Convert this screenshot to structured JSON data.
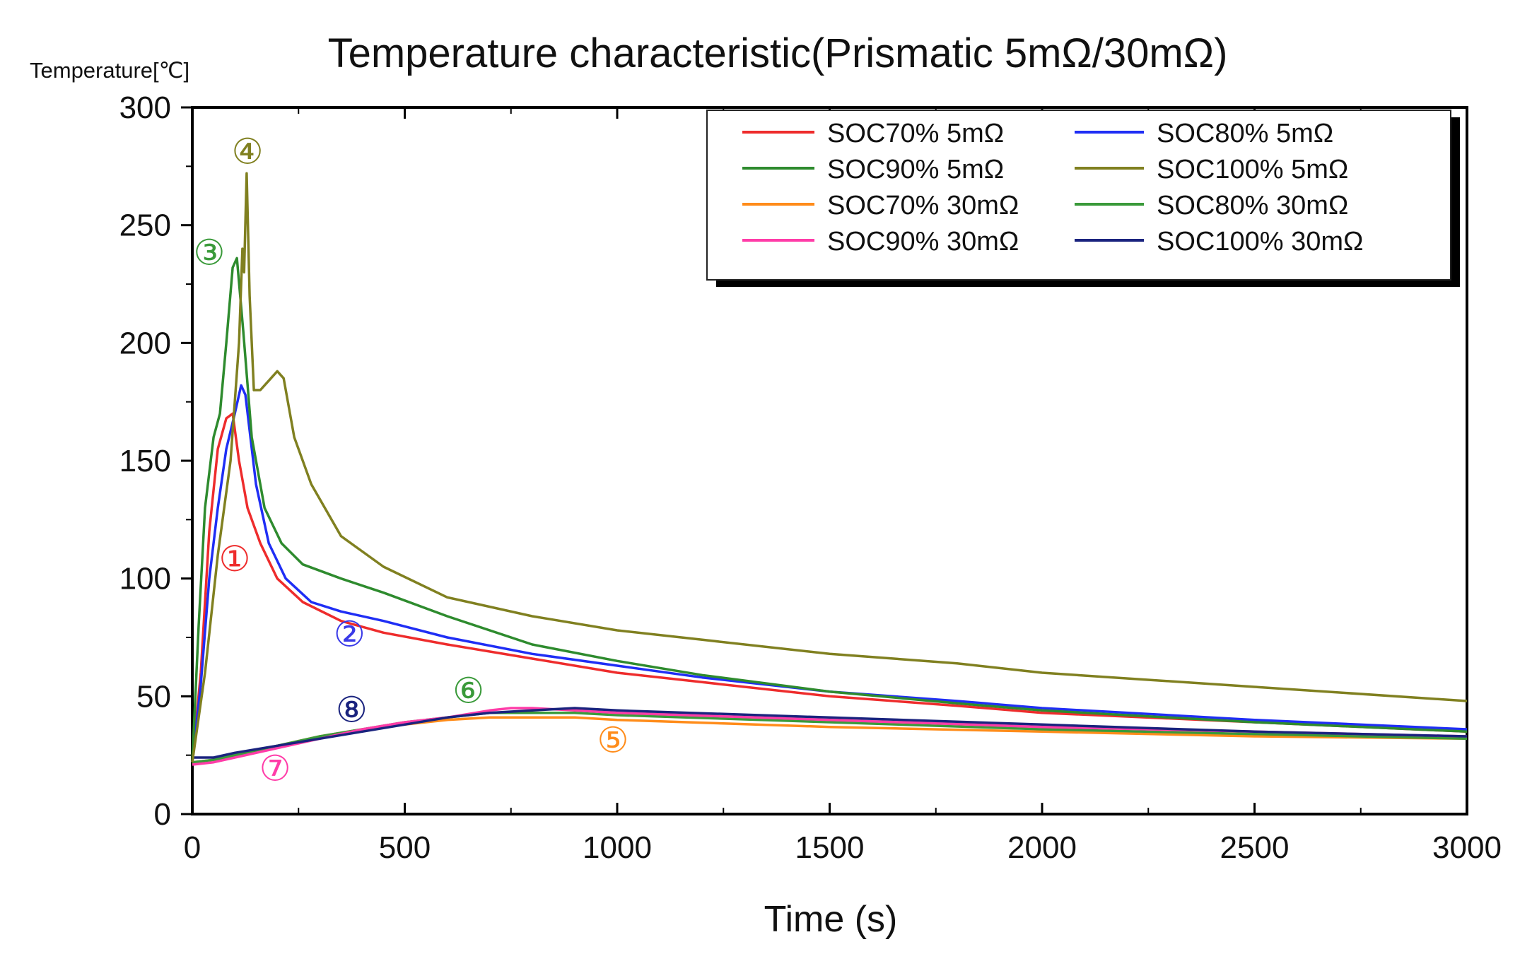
{
  "chart_data": {
    "type": "line",
    "title": "Temperature characteristic(Prismatic 5mΩ/30mΩ)",
    "ylabel": "Temperature[℃]",
    "xlabel": "Time (s)",
    "xlim": [
      0,
      3000
    ],
    "ylim": [
      0,
      300
    ],
    "xticks": [
      0,
      500,
      1000,
      1500,
      2000,
      2500,
      3000
    ],
    "yticks": [
      0,
      50,
      100,
      150,
      200,
      250,
      300
    ],
    "legend_position": "top-right",
    "series": [
      {
        "name": "SOC70% 5mΩ",
        "color": "#ee2c2c",
        "points": [
          [
            0,
            22
          ],
          [
            20,
            60
          ],
          [
            40,
            120
          ],
          [
            60,
            155
          ],
          [
            80,
            168
          ],
          [
            95,
            170
          ],
          [
            110,
            150
          ],
          [
            130,
            130
          ],
          [
            160,
            115
          ],
          [
            200,
            100
          ],
          [
            260,
            90
          ],
          [
            350,
            82
          ],
          [
            450,
            77
          ],
          [
            600,
            72
          ],
          [
            800,
            66
          ],
          [
            1000,
            60
          ],
          [
            1200,
            56
          ],
          [
            1500,
            50
          ],
          [
            1800,
            46
          ],
          [
            2000,
            43
          ],
          [
            2500,
            39
          ],
          [
            3000,
            35
          ]
        ]
      },
      {
        "name": "SOC80% 5mΩ",
        "color": "#1f2ef5",
        "points": [
          [
            0,
            22
          ],
          [
            20,
            55
          ],
          [
            40,
            100
          ],
          [
            60,
            130
          ],
          [
            80,
            155
          ],
          [
            100,
            170
          ],
          [
            115,
            182
          ],
          [
            125,
            178
          ],
          [
            150,
            140
          ],
          [
            180,
            115
          ],
          [
            220,
            100
          ],
          [
            280,
            90
          ],
          [
            350,
            86
          ],
          [
            450,
            82
          ],
          [
            600,
            75
          ],
          [
            800,
            68
          ],
          [
            1000,
            63
          ],
          [
            1200,
            58
          ],
          [
            1500,
            52
          ],
          [
            1800,
            48
          ],
          [
            2000,
            45
          ],
          [
            2500,
            40
          ],
          [
            3000,
            36
          ]
        ]
      },
      {
        "name": "SOC90% 5mΩ",
        "color": "#2e8b2e",
        "points": [
          [
            0,
            22
          ],
          [
            15,
            80
          ],
          [
            30,
            130
          ],
          [
            50,
            160
          ],
          [
            65,
            170
          ],
          [
            80,
            200
          ],
          [
            95,
            232
          ],
          [
            105,
            236
          ],
          [
            120,
            205
          ],
          [
            140,
            160
          ],
          [
            170,
            130
          ],
          [
            210,
            115
          ],
          [
            260,
            106
          ],
          [
            350,
            100
          ],
          [
            450,
            94
          ],
          [
            600,
            84
          ],
          [
            800,
            72
          ],
          [
            1000,
            65
          ],
          [
            1200,
            59
          ],
          [
            1500,
            52
          ],
          [
            1800,
            47
          ],
          [
            2000,
            44
          ],
          [
            2500,
            39
          ],
          [
            3000,
            35
          ]
        ]
      },
      {
        "name": "SOC100% 5mΩ",
        "color": "#808020",
        "points": [
          [
            0,
            22
          ],
          [
            30,
            60
          ],
          [
            60,
            110
          ],
          [
            90,
            150
          ],
          [
            110,
            200
          ],
          [
            118,
            240
          ],
          [
            122,
            230
          ],
          [
            128,
            272
          ],
          [
            135,
            220
          ],
          [
            145,
            180
          ],
          [
            160,
            180
          ],
          [
            180,
            184
          ],
          [
            200,
            188
          ],
          [
            215,
            185
          ],
          [
            240,
            160
          ],
          [
            280,
            140
          ],
          [
            350,
            118
          ],
          [
            450,
            105
          ],
          [
            600,
            92
          ],
          [
            800,
            84
          ],
          [
            1000,
            78
          ],
          [
            1200,
            74
          ],
          [
            1500,
            68
          ],
          [
            1800,
            64
          ],
          [
            2000,
            60
          ],
          [
            2500,
            54
          ],
          [
            3000,
            48
          ]
        ]
      },
      {
        "name": "SOC70% 30mΩ",
        "color": "#ff8c1a",
        "points": [
          [
            0,
            22
          ],
          [
            50,
            23
          ],
          [
            100,
            25
          ],
          [
            200,
            29
          ],
          [
            300,
            33
          ],
          [
            400,
            36
          ],
          [
            500,
            38
          ],
          [
            600,
            40
          ],
          [
            700,
            41
          ],
          [
            800,
            41
          ],
          [
            900,
            41
          ],
          [
            1000,
            40
          ],
          [
            1500,
            37
          ],
          [
            2000,
            35
          ],
          [
            2500,
            33
          ],
          [
            3000,
            32
          ]
        ]
      },
      {
        "name": "SOC80% 30mΩ",
        "color": "#3a9a3a",
        "points": [
          [
            0,
            22
          ],
          [
            50,
            23
          ],
          [
            100,
            25
          ],
          [
            200,
            29
          ],
          [
            300,
            33
          ],
          [
            400,
            36
          ],
          [
            500,
            39
          ],
          [
            600,
            41
          ],
          [
            700,
            43
          ],
          [
            800,
            43
          ],
          [
            900,
            43
          ],
          [
            1000,
            42
          ],
          [
            1500,
            39
          ],
          [
            2000,
            36
          ],
          [
            2500,
            34
          ],
          [
            3000,
            32
          ]
        ]
      },
      {
        "name": "SOC90% 30mΩ",
        "color": "#ff3ca8",
        "points": [
          [
            0,
            21
          ],
          [
            50,
            22
          ],
          [
            100,
            24
          ],
          [
            200,
            28
          ],
          [
            300,
            32
          ],
          [
            400,
            36
          ],
          [
            500,
            39
          ],
          [
            600,
            41
          ],
          [
            700,
            44
          ],
          [
            750,
            45
          ],
          [
            800,
            45
          ],
          [
            900,
            44
          ],
          [
            1000,
            43
          ],
          [
            1500,
            40
          ],
          [
            2000,
            37
          ],
          [
            2500,
            35
          ],
          [
            3000,
            33
          ]
        ]
      },
      {
        "name": "SOC100% 30mΩ",
        "color": "#1a237e",
        "points": [
          [
            0,
            24
          ],
          [
            50,
            24
          ],
          [
            100,
            26
          ],
          [
            200,
            29
          ],
          [
            300,
            32
          ],
          [
            400,
            35
          ],
          [
            500,
            38
          ],
          [
            600,
            41
          ],
          [
            700,
            43
          ],
          [
            800,
            44
          ],
          [
            900,
            45
          ],
          [
            1000,
            44
          ],
          [
            1500,
            41
          ],
          [
            2000,
            38
          ],
          [
            2500,
            35
          ],
          [
            3000,
            33
          ]
        ]
      }
    ],
    "annotations": [
      {
        "label": "①",
        "x": 100,
        "y": 108,
        "color": "#ee2c2c"
      },
      {
        "label": "②",
        "x": 370,
        "y": 76,
        "color": "#3a3ae8"
      },
      {
        "label": "③",
        "x": 40,
        "y": 238,
        "color": "#3a9a3a"
      },
      {
        "label": "④",
        "x": 130,
        "y": 281,
        "color": "#808020"
      },
      {
        "label": "⑤",
        "x": 990,
        "y": 31,
        "color": "#ff8c1a"
      },
      {
        "label": "⑥",
        "x": 650,
        "y": 52,
        "color": "#3a9a3a"
      },
      {
        "label": "⑦",
        "x": 195,
        "y": 19,
        "color": "#ff3ca8"
      },
      {
        "label": "⑧",
        "x": 375,
        "y": 44,
        "color": "#1a237e"
      }
    ]
  }
}
